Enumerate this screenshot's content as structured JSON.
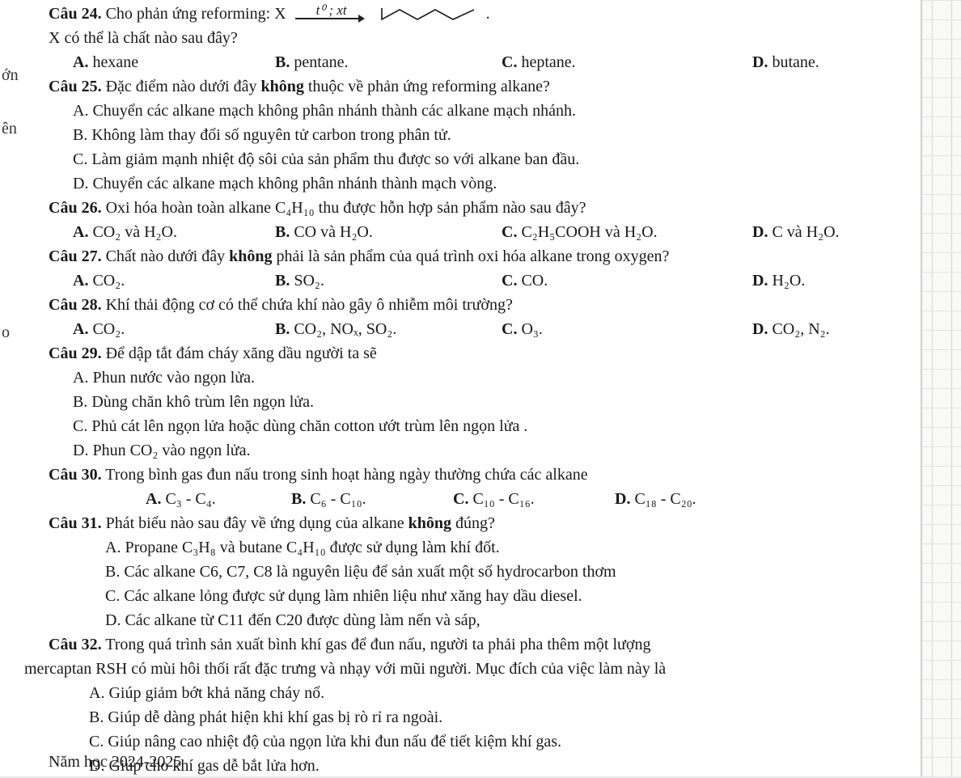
{
  "margins": {
    "on": "ớn",
    "en": "ên",
    "o": "o"
  },
  "arrow": {
    "label": "t⁰ ; xt"
  },
  "q24": {
    "head": "Câu 24.",
    "text1": " Cho phản ứng reforming:  X",
    "mol_svg_color": "#222222",
    "dot": ".",
    "text2": "X có thể là chất nào sau đây?",
    "A": "A.",
    "Atext": "hexane",
    "B": "B.",
    "Btext": "pentane.",
    "C": "C.",
    "Ctext": "heptane.",
    "D": "D.",
    "Dtext": "butane."
  },
  "q25": {
    "head": "Câu 25.",
    "text": " Đặc điểm nào dưới đây ",
    "bold1": "không",
    "text2": " thuộc về phản ứng reforming alkane?",
    "A": "A.",
    "Atext": "Chuyển các alkane mạch không phân nhánh thành các alkane mạch nhánh.",
    "B": "B.",
    "Btext": "Không làm thay đổi số nguyên tử carbon trong phân tử.",
    "C": "C.",
    "Ctext": "Làm giảm mạnh nhiệt độ sôi của sản phẩm thu được so với alkane ban đầu.",
    "D": "D.",
    "Dtext": "Chuyển các alkane mạch không phân nhánh thành mạch vòng."
  },
  "q26": {
    "head": "Câu 26.",
    "text": " Oxi hóa hoàn toàn alkane C₄H₁₀ thu được hỗn hợp sản phẩm nào sau đây?",
    "A": "A.",
    "Atext": "CO₂ và H₂O.",
    "B": "B.",
    "Btext": "CO và H₂O.",
    "C": "C.",
    "Ctext": "C₂H₅COOH và H₂O.",
    "D": "D.",
    "Dtext": "C và H₂O."
  },
  "q27": {
    "head": "Câu 27.",
    "text": " Chất nào dưới đây ",
    "bold1": "không",
    "text2": " phải là sản phẩm của quá trình oxi hóa alkane trong oxygen?",
    "A": "A.",
    "Atext": "CO₂.",
    "B": "B.",
    "Btext": "SO₂.",
    "C": "C.",
    "Ctext": "CO.",
    "D": "D.",
    "Dtext": "H₂O."
  },
  "q28": {
    "head": "Câu 28.",
    "text": " Khí thải động cơ có thể chứa khí nào gây ô nhiễm môi trường?",
    "A": "A.",
    "Atext": "CO₂.",
    "B": "B.",
    "Btext": "CO₂, NOₓ, SO₂.",
    "C": "C.",
    "Ctext": "O₃.",
    "D": "D.",
    "Dtext": "CO₂, N₂."
  },
  "q29": {
    "head": "Câu 29.",
    "text": " Để dập tắt đám cháy xăng dầu người ta sẽ",
    "A": "A.",
    "Atext": "Phun nước vào ngọn lửa.",
    "B": "B.",
    "Btext": "Dùng chăn khô trùm lên ngọn lửa.",
    "C": "C.",
    "Ctext": "Phủ cát lên ngọn lửa hoặc dùng chăn cotton ướt trùm lên ngọn lửa .",
    "D": "D.",
    "Dtext": " Phun CO₂ vào ngọn lửa."
  },
  "q30": {
    "head": "Câu 30.",
    "text": " Trong bình gas đun nấu trong sinh hoạt hàng ngày thường chứa các alkane",
    "A": "A.",
    "Atext": "C₃ - C₄.",
    "B": "B.",
    "Btext": "C₆ - C₁₀.",
    "C": "C.",
    "Ctext": "C₁₀ - C₁₆.",
    "D": "D.",
    "Dtext": "C₁₈ - C₂₀."
  },
  "q31": {
    "head": "Câu 31.",
    "text": " Phát biểu nào sau đây về ứng dụng của alkane ",
    "bold1": "không",
    "text2": " đúng?",
    "A": "A.",
    "Atext": "Propane C₃H₈ và butane C₄H₁₀ được sử dụng làm khí đốt.",
    "B": "B.",
    "Btext": "Các alkane C6, C7, C8 là nguyên liệu để sản xuất một số hydrocarbon thơm",
    "C": "C.",
    "Ctext": "Các alkane lỏng được sử dụng làm nhiên liệu như xăng hay dầu diesel.",
    "D": "D.",
    "Dtext": "Các alkane từ C11 đến C20 được dùng làm nến và sáp,"
  },
  "q32": {
    "head": "Câu 32.",
    "text": " Trong quá trình sản xuất bình khí gas để đun nấu, người ta phải pha thêm một lượng",
    "text2": "mercaptan RSH có mùi hôi thối rất đặc trưng và nhạy với mũi người. Mục đích của việc làm này là",
    "A": "A.",
    "Atext": "Giúp giảm bớt khả năng cháy nổ.",
    "B": "B.",
    "Btext": "Giúp dễ dàng phát hiện khi khí gas bị rò rỉ ra ngoài.",
    "C": "C.",
    "Ctext": "Giúp nâng cao nhiệt độ của ngọn lửa khi đun nấu để tiết kiệm khí gas.",
    "D": "D.",
    "Dtext": "Giúp cho khí gas dễ bắt lửa hơn."
  },
  "footer": "Năm học 2024-2025",
  "opt_widths": {
    "w1": 250,
    "w2": 280,
    "w3": 310
  }
}
